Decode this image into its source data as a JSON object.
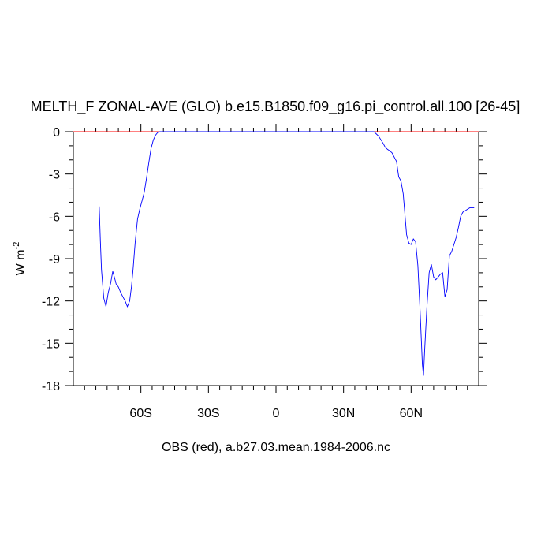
{
  "chart_data": {
    "type": "line",
    "title": "MELTH_F ZONAL-AVE (GLO) b.e15.B1850.f09_g16.pi_control.all.100 [26-45]",
    "xlabel": "OBS (red), a.b27.03.mean.1984-2006.nc",
    "ylabel": "W m",
    "ylabel_superscript": "-2",
    "xlim": [
      -90,
      90
    ],
    "ylim": [
      -18,
      0
    ],
    "x_ticks": [
      {
        "value": -60,
        "label": "60S"
      },
      {
        "value": -30,
        "label": "30S"
      },
      {
        "value": 0,
        "label": "0"
      },
      {
        "value": 30,
        "label": "30N"
      },
      {
        "value": 60,
        "label": "60N"
      }
    ],
    "y_ticks": [
      {
        "value": 0,
        "label": "0"
      },
      {
        "value": -3,
        "label": "-3"
      },
      {
        "value": -6,
        "label": "-6"
      },
      {
        "value": -9,
        "label": "-9"
      },
      {
        "value": -12,
        "label": "-12"
      },
      {
        "value": -15,
        "label": "-15"
      },
      {
        "value": -18,
        "label": "-18"
      }
    ],
    "grid": false,
    "series": [
      {
        "color": "#0000ff",
        "x": [
          -78.5,
          -78.0,
          -77.5,
          -76.5,
          -75.5,
          -74.5,
          -73.5,
          -72.5,
          -71.8,
          -71.0,
          -70.0,
          -69.0,
          -68.0,
          -67.0,
          -66.0,
          -65.0,
          -64.2,
          -63.5,
          -62.5,
          -61.5,
          -60.5,
          -59.5,
          -58.5,
          -57.5,
          -56.5,
          -55.5,
          -54.5,
          -53.5,
          -52.5,
          -51.5,
          -50.5,
          -49.0,
          -30.0,
          0.0,
          20.0,
          43.5,
          45.5,
          47.5,
          48.5,
          49.5,
          50.5,
          51.5,
          52.5,
          53.5,
          54.5,
          55.5,
          56.5,
          57.0,
          58.0,
          59.0,
          60.0,
          61.0,
          62.0,
          63.0,
          64.0,
          65.0,
          65.5,
          66.0,
          67.0,
          68.0,
          69.0,
          70.0,
          71.0,
          72.0,
          73.0,
          74.0,
          75.0,
          76.0,
          77.0,
          78.0,
          79.0,
          80.0,
          81.0,
          82.0,
          83.0,
          84.0,
          85.0,
          86.0,
          87.0,
          88.0
        ],
        "y": [
          -5.3,
          -7.8,
          -9.8,
          -11.8,
          -12.4,
          -11.4,
          -10.8,
          -9.9,
          -10.3,
          -10.8,
          -11.0,
          -11.4,
          -11.7,
          -12.0,
          -12.4,
          -12.0,
          -11.0,
          -9.8,
          -7.8,
          -6.2,
          -5.5,
          -4.9,
          -4.3,
          -3.3,
          -2.2,
          -1.2,
          -0.6,
          -0.25,
          -0.05,
          0.0,
          0.0,
          0.0,
          0.0,
          0.0,
          0.0,
          0.0,
          -0.3,
          -0.8,
          -1.1,
          -1.25,
          -1.35,
          -1.5,
          -1.8,
          -2.1,
          -3.2,
          -3.5,
          -4.4,
          -5.4,
          -7.3,
          -7.9,
          -8.0,
          -7.6,
          -7.8,
          -9.5,
          -12.8,
          -16.5,
          -17.3,
          -15.5,
          -12.5,
          -10.0,
          -9.4,
          -10.3,
          -10.5,
          -10.3,
          -10.1,
          -10.0,
          -11.7,
          -11.2,
          -8.8,
          -8.5,
          -8.0,
          -7.5,
          -6.8,
          -6.0,
          -5.7,
          -5.6,
          -5.5,
          -5.4,
          -5.4,
          -5.4
        ]
      },
      {
        "color": "#ff0000",
        "x": [
          -90,
          90
        ],
        "y": [
          0,
          0
        ]
      }
    ]
  }
}
